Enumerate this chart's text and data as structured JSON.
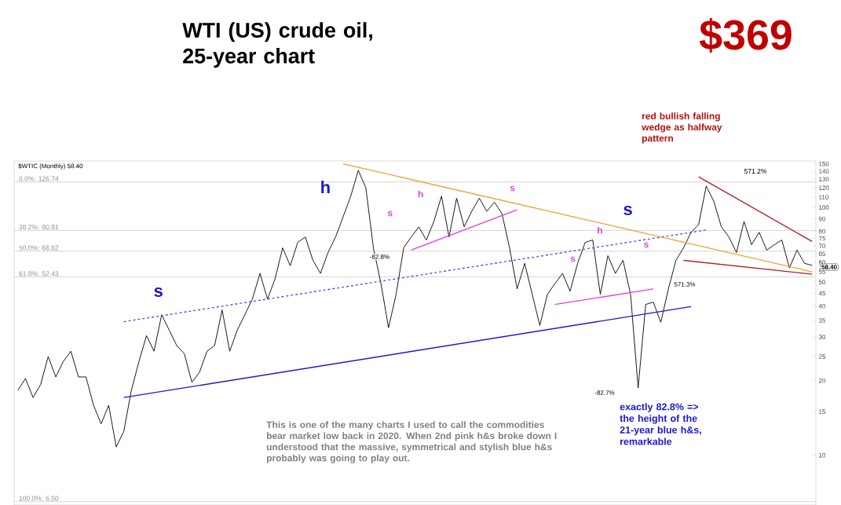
{
  "chart_data": {
    "type": "line",
    "title": "WTI (US) crude oil, 25-year chart",
    "categories": [
      null,
      null,
      null,
      null,
      null,
      null,
      null,
      null,
      null,
      null,
      null,
      null,
      null,
      null,
      null,
      null,
      null,
      null,
      null,
      null,
      null,
      null,
      null,
      null,
      null,
      null,
      null,
      null,
      null,
      null,
      null,
      null,
      null,
      null,
      null,
      null,
      null,
      null,
      null,
      null,
      null,
      null,
      null,
      null,
      null,
      null,
      null,
      null,
      null,
      null,
      null,
      null,
      null,
      null,
      null,
      null,
      null,
      null,
      null,
      null,
      null,
      null,
      null,
      null,
      null,
      null,
      null,
      null,
      null,
      null,
      null,
      null,
      null,
      null,
      null,
      null,
      null,
      null,
      null,
      null,
      null,
      null,
      null,
      null,
      null,
      null,
      null,
      null,
      null,
      null,
      null,
      null,
      null,
      null,
      null,
      null,
      null,
      null,
      null,
      null,
      null,
      null,
      null,
      null,
      null,
      null
    ],
    "series": [
      {
        "color": "#000000",
        "line_style": "solid",
        "values": [
          18.3,
          20.4,
          17.1,
          19.3,
          25.0,
          20.7,
          23.9,
          26.3,
          20.7,
          20.7,
          15.9,
          13.4,
          15.9,
          10.8,
          12.5,
          18.3,
          23.9,
          30.4,
          26.3,
          36.9,
          32.0,
          27.7,
          25.7,
          19.7,
          21.6,
          26.3,
          27.7,
          38.6,
          26.3,
          32.0,
          36.9,
          42.7,
          54.2,
          42.7,
          51.5,
          68.7,
          58.2,
          72.3,
          76.0,
          61.2,
          54.2,
          65.8,
          76.0,
          91.7,
          111,
          141,
          120,
          68.7,
          49.3,
          32.7,
          44.6,
          68.7,
          76.0,
          83.5,
          73.9,
          87.8,
          111,
          76.0,
          109,
          83.5,
          96.5,
          109,
          96.5,
          105,
          94.4,
          68.7,
          46.9,
          59.5,
          44.6,
          33.4,
          44.6,
          49.3,
          54.2,
          45.9,
          59.5,
          72.3,
          73.9,
          44.6,
          63.9,
          54.2,
          61.2,
          44.6,
          18.7,
          40.6,
          41.5,
          34.4,
          46.9,
          61.2,
          68.7,
          79.4,
          85.3,
          122,
          106,
          83.5,
          76.0,
          65.8,
          87.8,
          70.7,
          79.4,
          67.3,
          70.7,
          73.9,
          57.0,
          67.3,
          59.5,
          58.4
        ]
      },
      {
        "color": "#1a1acc",
        "line_style": "solid",
        "values": [
          null,
          null,
          null,
          null,
          null,
          null,
          null,
          null,
          null,
          null,
          null,
          null,
          null,
          null,
          17.1,
          null,
          null,
          null,
          null,
          null,
          null,
          null,
          null,
          null,
          null,
          null,
          null,
          null,
          null,
          null,
          null,
          null,
          null,
          null,
          null,
          null,
          null,
          null,
          null,
          null,
          null,
          null,
          null,
          null,
          null,
          null,
          null,
          null,
          null,
          null,
          null,
          null,
          null,
          null,
          null,
          null,
          null,
          null,
          null,
          null,
          null,
          null,
          null,
          null,
          null,
          null,
          null,
          null,
          null,
          null,
          null,
          null,
          null,
          null,
          null,
          null,
          null,
          null,
          null,
          null,
          null,
          null,
          null,
          null,
          null,
          null,
          null,
          null,
          null,
          39.8,
          null,
          null,
          null,
          null,
          null,
          null,
          null,
          null,
          null,
          null,
          null,
          null,
          null,
          null,
          null,
          null
        ]
      },
      {
        "color": "#5555dd",
        "line_style": "dashed",
        "values": [
          null,
          null,
          null,
          null,
          null,
          null,
          null,
          null,
          null,
          null,
          null,
          null,
          null,
          null,
          34.6,
          null,
          null,
          null,
          null,
          null,
          null,
          null,
          null,
          null,
          null,
          null,
          null,
          null,
          null,
          null,
          null,
          null,
          null,
          null,
          null,
          null,
          null,
          null,
          null,
          null,
          null,
          null,
          null,
          null,
          null,
          null,
          null,
          null,
          null,
          null,
          null,
          null,
          null,
          null,
          null,
          null,
          null,
          null,
          null,
          null,
          null,
          null,
          null,
          null,
          null,
          null,
          null,
          null,
          null,
          null,
          null,
          null,
          null,
          null,
          null,
          null,
          null,
          null,
          null,
          null,
          null,
          null,
          null,
          null,
          null,
          null,
          null,
          null,
          null,
          null,
          null,
          81.1,
          null,
          null,
          null,
          null,
          null,
          null,
          null,
          null,
          null,
          null,
          null,
          null,
          null,
          null
        ]
      },
      {
        "color": "#f0a030",
        "line_style": "solid",
        "values": [
          null,
          null,
          null,
          null,
          null,
          null,
          null,
          null,
          null,
          null,
          null,
          null,
          null,
          null,
          null,
          null,
          null,
          null,
          null,
          null,
          null,
          null,
          null,
          null,
          null,
          null,
          null,
          null,
          null,
          null,
          null,
          null,
          null,
          null,
          null,
          null,
          null,
          null,
          null,
          null,
          null,
          null,
          null,
          150,
          null,
          null,
          null,
          null,
          null,
          null,
          null,
          null,
          null,
          null,
          null,
          null,
          null,
          null,
          null,
          null,
          null,
          null,
          null,
          null,
          null,
          null,
          null,
          null,
          null,
          null,
          null,
          null,
          null,
          null,
          null,
          null,
          null,
          null,
          null,
          null,
          null,
          null,
          null,
          null,
          null,
          null,
          null,
          null,
          null,
          null,
          null,
          null,
          null,
          null,
          null,
          null,
          null,
          null,
          null,
          null,
          null,
          null,
          null,
          null,
          null,
          55.0
        ]
      },
      {
        "color": "#e040e0",
        "line_style": "solid",
        "values": [
          null,
          null,
          null,
          null,
          null,
          null,
          null,
          null,
          null,
          null,
          null,
          null,
          null,
          null,
          null,
          null,
          null,
          null,
          null,
          null,
          null,
          null,
          null,
          null,
          null,
          null,
          null,
          null,
          null,
          null,
          null,
          null,
          null,
          null,
          null,
          null,
          null,
          null,
          null,
          null,
          null,
          null,
          null,
          null,
          null,
          null,
          null,
          null,
          null,
          null,
          null,
          null,
          67.3,
          null,
          null,
          null,
          null,
          null,
          null,
          null,
          null,
          null,
          null,
          null,
          null,
          null,
          97.9,
          null,
          null,
          null,
          null,
          null,
          null,
          null,
          null,
          null,
          null,
          null,
          null,
          null,
          null,
          null,
          null,
          null,
          null,
          null,
          null,
          null,
          null,
          null,
          null,
          null,
          null,
          null,
          null,
          null,
          null,
          null,
          null,
          null,
          null,
          null,
          null,
          null,
          null,
          null
        ]
      },
      {
        "color": "#e040e0",
        "line_style": "solid",
        "values": [
          null,
          null,
          null,
          null,
          null,
          null,
          null,
          null,
          null,
          null,
          null,
          null,
          null,
          null,
          null,
          null,
          null,
          null,
          null,
          null,
          null,
          null,
          null,
          null,
          null,
          null,
          null,
          null,
          null,
          null,
          null,
          null,
          null,
          null,
          null,
          null,
          null,
          null,
          null,
          null,
          null,
          null,
          null,
          null,
          null,
          null,
          null,
          null,
          null,
          null,
          null,
          null,
          null,
          null,
          null,
          null,
          null,
          null,
          null,
          null,
          null,
          null,
          null,
          null,
          null,
          null,
          null,
          null,
          null,
          null,
          null,
          40.6,
          null,
          null,
          null,
          null,
          null,
          null,
          null,
          null,
          null,
          null,
          null,
          null,
          46.9,
          null,
          null,
          null,
          null,
          null,
          null,
          null,
          null,
          null,
          null,
          null,
          null,
          null,
          null,
          null,
          null,
          null,
          null,
          null,
          null,
          null
        ]
      },
      {
        "color": "#b22222",
        "line_style": "solid",
        "values": [
          null,
          null,
          null,
          null,
          null,
          null,
          null,
          null,
          null,
          null,
          null,
          null,
          null,
          null,
          null,
          null,
          null,
          null,
          null,
          null,
          null,
          null,
          null,
          null,
          null,
          null,
          null,
          null,
          null,
          null,
          null,
          null,
          null,
          null,
          null,
          null,
          null,
          null,
          null,
          null,
          null,
          null,
          null,
          null,
          null,
          null,
          null,
          null,
          null,
          null,
          null,
          null,
          null,
          null,
          null,
          null,
          null,
          null,
          null,
          null,
          null,
          null,
          null,
          null,
          null,
          null,
          null,
          null,
          null,
          null,
          null,
          null,
          null,
          null,
          null,
          null,
          null,
          null,
          null,
          null,
          null,
          null,
          null,
          null,
          null,
          null,
          null,
          null,
          null,
          null,
          133,
          null,
          null,
          null,
          null,
          null,
          null,
          null,
          null,
          null,
          null,
          null,
          null,
          null,
          null,
          72.9
        ]
      },
      {
        "color": "#b22222",
        "line_style": "solid",
        "values": [
          null,
          null,
          null,
          null,
          null,
          null,
          null,
          null,
          null,
          null,
          null,
          null,
          null,
          null,
          null,
          null,
          null,
          null,
          null,
          null,
          null,
          null,
          null,
          null,
          null,
          null,
          null,
          null,
          null,
          null,
          null,
          null,
          null,
          null,
          null,
          null,
          null,
          null,
          null,
          null,
          null,
          null,
          null,
          null,
          null,
          null,
          null,
          null,
          null,
          null,
          null,
          null,
          null,
          null,
          null,
          null,
          null,
          null,
          null,
          null,
          null,
          null,
          null,
          null,
          null,
          null,
          null,
          null,
          null,
          null,
          null,
          null,
          null,
          null,
          null,
          null,
          null,
          null,
          null,
          null,
          null,
          null,
          null,
          null,
          null,
          null,
          null,
          null,
          61.2,
          null,
          null,
          null,
          null,
          null,
          null,
          null,
          null,
          null,
          null,
          null,
          null,
          null,
          null,
          null,
          null,
          53.8
        ]
      }
    ],
    "log": true,
    "ylim": [
      6.3,
      154
    ],
    "yticks": [
      10,
      15,
      20,
      25,
      30,
      35,
      40,
      45,
      50,
      55,
      60,
      65,
      70,
      75,
      80,
      90,
      100,
      110,
      120,
      130,
      140,
      150
    ],
    "tick_labels": "y",
    "marker": "none",
    "ref_lines": [
      {
        "axis": "y",
        "value": 126.74,
        "label": "0.0%: 126.74",
        "color": "#cccccc"
      },
      {
        "axis": "y",
        "value": 80.81,
        "label": "38.2%: 80.81",
        "color": "#cccccc"
      },
      {
        "axis": "y",
        "value": 66.62,
        "label": "50.0%: 66.62",
        "color": "#cccccc"
      },
      {
        "axis": "y",
        "value": 52.43,
        "label": "61.8%: 52.43",
        "color": "#cccccc"
      },
      {
        "axis": "y",
        "value": 6.5,
        "label": "100.0%: 6.50",
        "color": "#cccccc"
      }
    ],
    "annotations": [
      "s",
      "h",
      "s",
      "s",
      "h",
      "s",
      "s",
      "h",
      "s",
      "-82.8%",
      "571.3%",
      "-82.7%",
      "571.2%",
      "red bullish falling wedge as halfway pattern",
      "$369",
      "exactly 82.8% => the height of the 21-year blue h&s, remarkable",
      "This is one of the many charts I used to call the commodities bear market low back in 2020.  When 2nd pink h&s broke down I understood that the massive, symmetrical and stylish blue h&s probably was going to play out.",
      "$WTIC (Monthly) 58.40",
      "58.40"
    ]
  }
}
